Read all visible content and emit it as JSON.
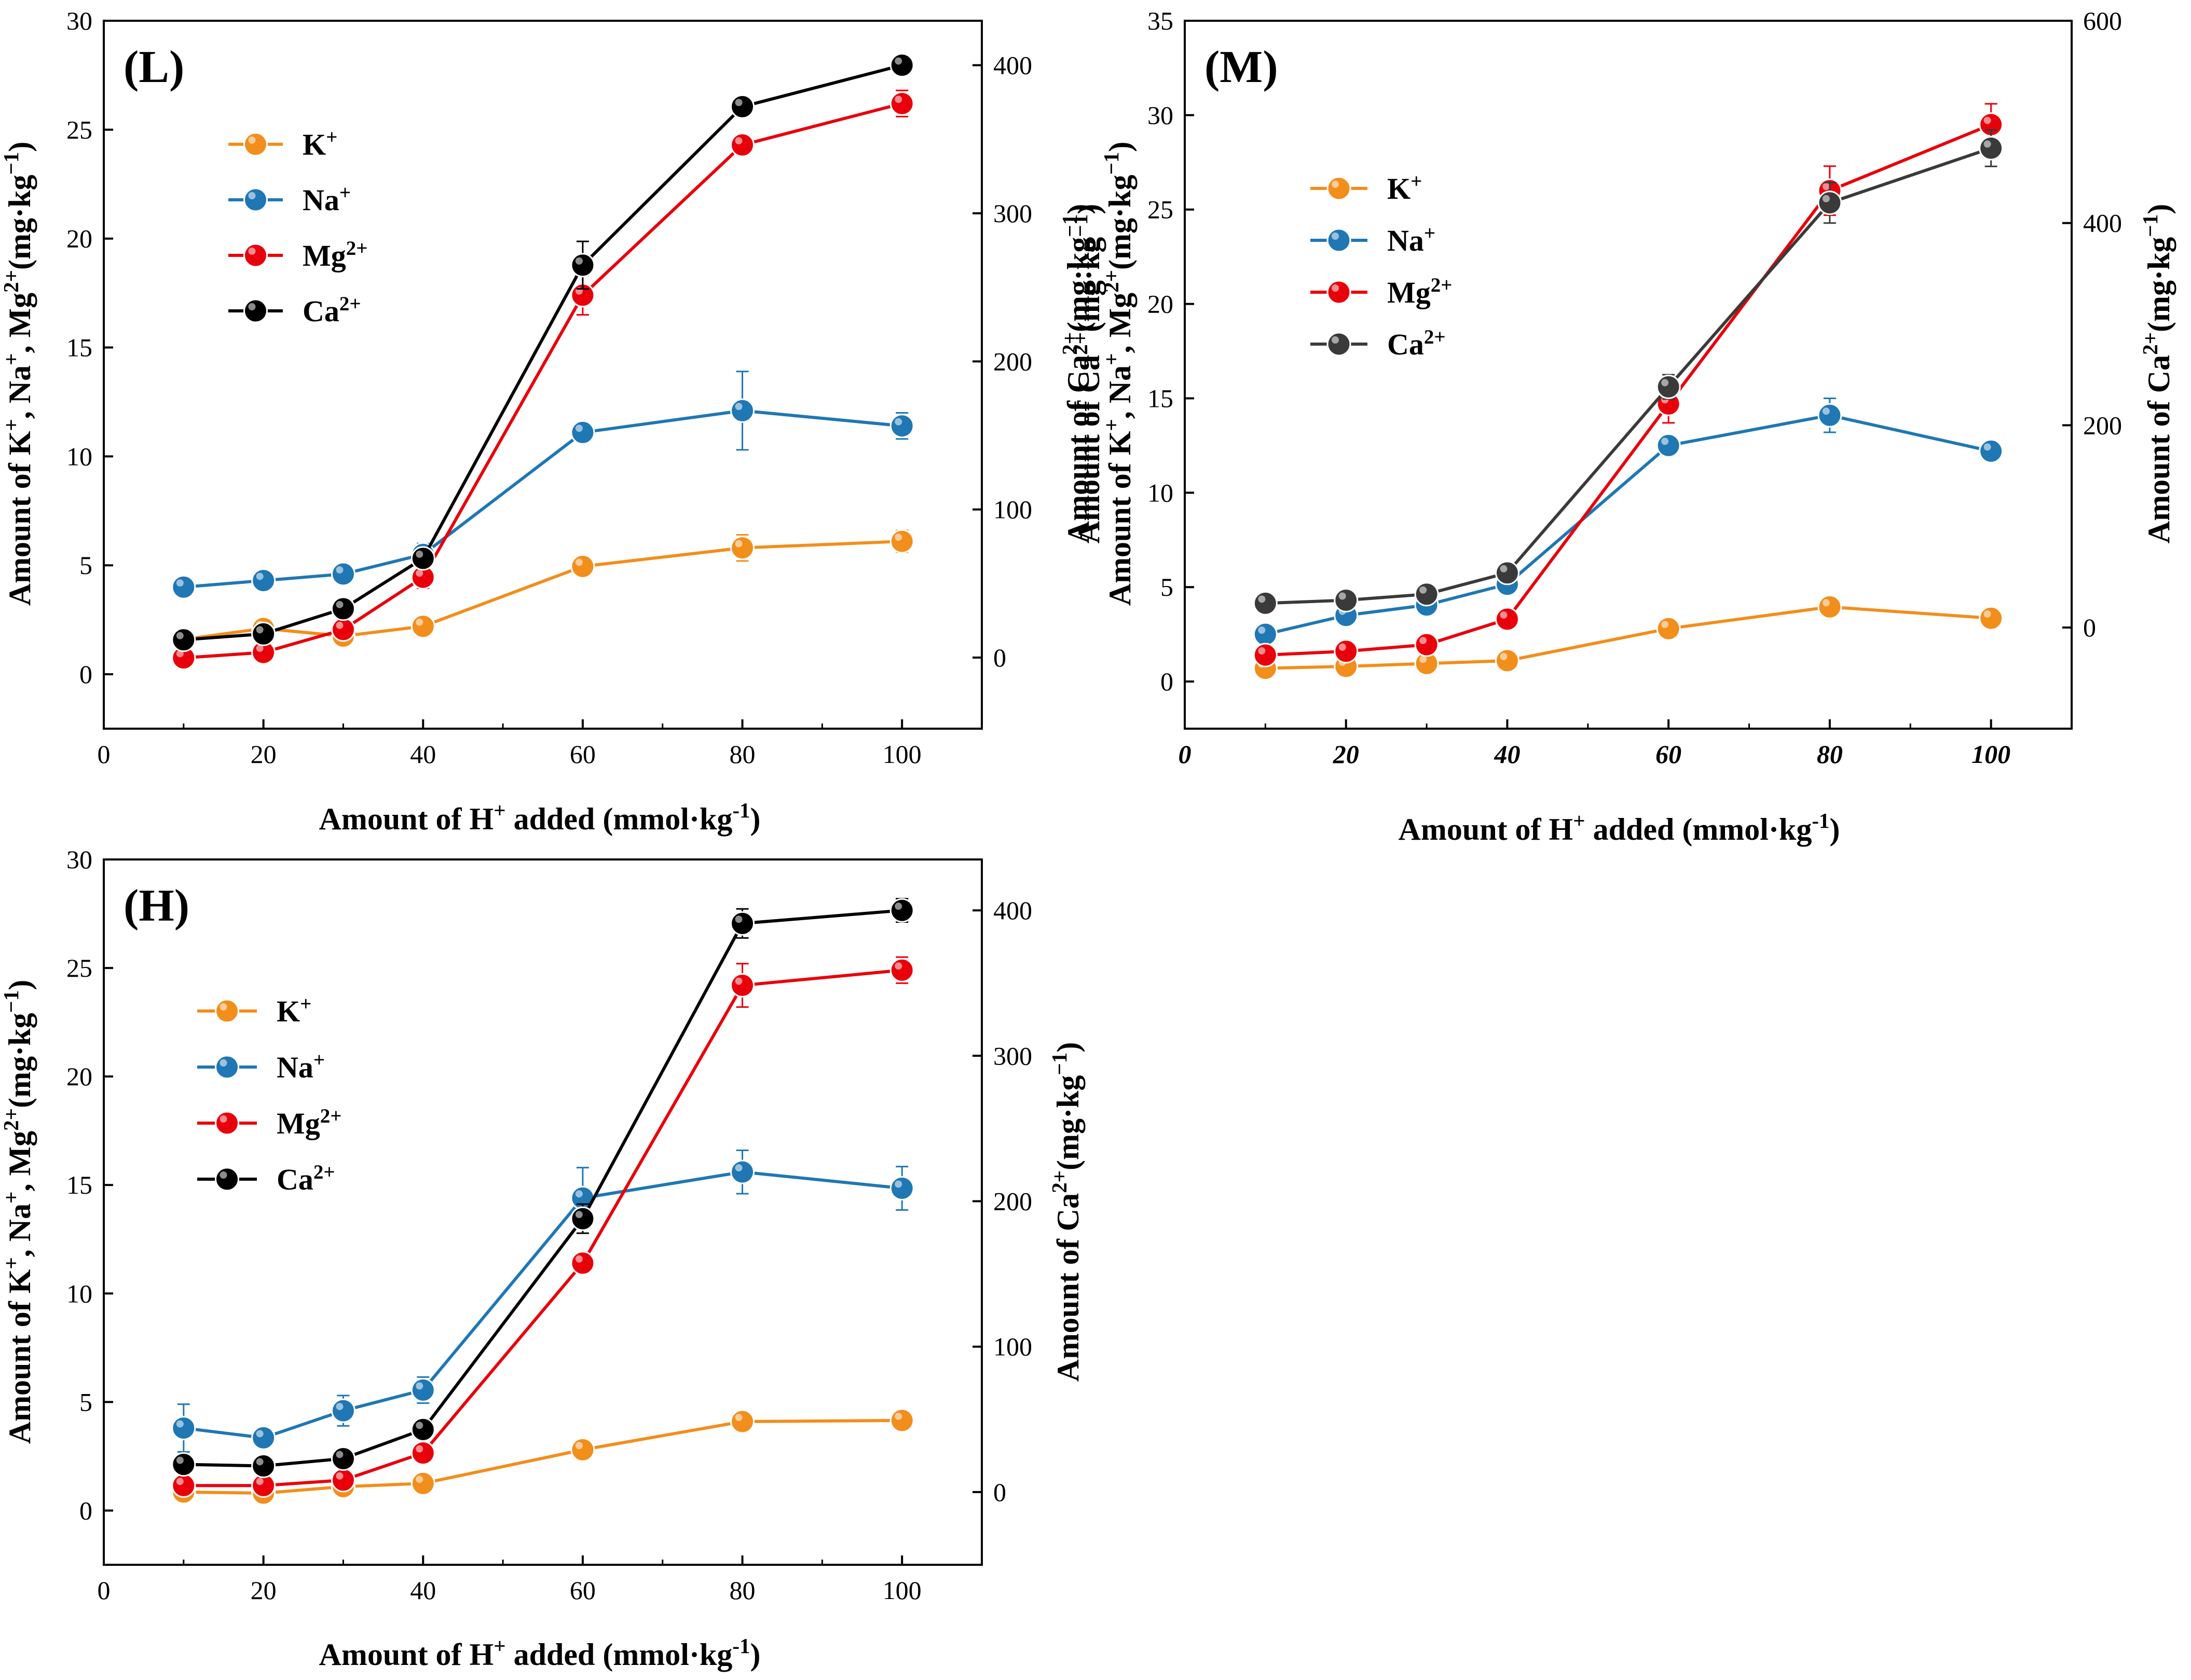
{
  "chart_data": [
    {
      "type": "line",
      "panel": "(L)",
      "title": "",
      "xlabel": "Amount of H+ added (mmol·kg-1)",
      "xlabel_parts": {
        "pre": "Amount of H",
        "sup": "+",
        "post": " added (mmol·kg",
        "sup2": "-1",
        "end": ")"
      },
      "ylabel": "Amount of K+, Na+, Mg2+(mg·kg−1)",
      "y2label": "Amount of Ca2+(mg·kg−1)",
      "xlim": [
        0,
        110
      ],
      "ylim": [
        -2.5,
        30
      ],
      "y2lim": [
        -48,
        430
      ],
      "xticks": [
        0,
        20,
        40,
        60,
        80,
        100
      ],
      "yticks": [
        0,
        5,
        10,
        15,
        20,
        25,
        30
      ],
      "y2ticks": [
        0,
        100,
        200,
        300,
        400
      ],
      "legend_position": "top-left",
      "x": [
        10,
        20,
        30,
        40,
        60,
        80,
        100
      ],
      "series": [
        {
          "name": "K+",
          "label_base": "K",
          "label_sup": "+",
          "color": "#f28e1c",
          "axis": "left",
          "values": [
            1.6,
            2.1,
            1.75,
            2.2,
            4.95,
            5.8,
            6.1
          ],
          "errors": [
            0.2,
            0.2,
            0.2,
            0.2,
            0.3,
            0.6,
            0.5
          ]
        },
        {
          "name": "Na+",
          "label_base": "Na",
          "label_sup": "+",
          "color": "#1f77b4",
          "axis": "left",
          "values": [
            4.0,
            4.3,
            4.6,
            5.5,
            11.1,
            12.1,
            11.4
          ],
          "errors": [
            0.3,
            0.2,
            0.3,
            0.5,
            0.4,
            1.8,
            0.6
          ]
        },
        {
          "name": "Mg2+",
          "label_base": "Mg",
          "label_sup": "2+",
          "color": "#e8000b",
          "axis": "left",
          "values": [
            0.75,
            1.0,
            2.05,
            4.45,
            17.4,
            24.3,
            26.2
          ],
          "errors": [
            0.2,
            0.2,
            0.2,
            0.5,
            0.9,
            0.4,
            0.6
          ]
        },
        {
          "name": "Ca2+",
          "label_base": "Ca",
          "label_sup": "2+",
          "color": "#000000",
          "axis": "right",
          "values": [
            12,
            16,
            33,
            67,
            265,
            372,
            400
          ],
          "errors": [
            3,
            3,
            3,
            5,
            16,
            4,
            5
          ]
        }
      ]
    },
    {
      "type": "line",
      "panel": "(M)",
      "title": "",
      "xlabel": "Amount of H+ added (mmol·kg-1)",
      "xlabel_parts": {
        "pre": "Amount of H",
        "sup": "+",
        "post": " added (mmol·kg",
        "sup2": "-1",
        "end": ")"
      },
      "ylabel": "Amount of K+, Na+, Mg2+(mg·kg−1)",
      "ylabel_overlap": "Amount of Ca2+(mg·kg−1)",
      "y2label": "Amount of Ca2+(mg·kg−1)",
      "xlim": [
        0,
        110
      ],
      "ylim": [
        -2.5,
        35
      ],
      "y2lim": [
        -100,
        600
      ],
      "xticks": [
        0,
        20,
        40,
        60,
        80,
        100
      ],
      "yticks": [
        0,
        5,
        10,
        15,
        20,
        25,
        30,
        35
      ],
      "y2ticks": [
        0,
        200,
        400,
        600
      ],
      "legend_position": "top-left",
      "x": [
        10,
        20,
        30,
        40,
        60,
        80,
        100
      ],
      "series": [
        {
          "name": "K+",
          "label_base": "K",
          "label_sup": "+",
          "color": "#f28e1c",
          "axis": "left",
          "values": [
            0.7,
            0.8,
            0.95,
            1.1,
            2.8,
            3.95,
            3.35
          ],
          "errors": [
            0.1,
            0.1,
            0.1,
            0.1,
            0.2,
            0.2,
            0.2
          ]
        },
        {
          "name": "Na+",
          "label_base": "Na",
          "label_sup": "+",
          "color": "#1f77b4",
          "axis": "left",
          "values": [
            2.5,
            3.5,
            4.05,
            5.15,
            12.5,
            14.1,
            12.2
          ],
          "errors": [
            0.1,
            0.2,
            0.2,
            0.2,
            0.3,
            0.9,
            0.3
          ]
        },
        {
          "name": "Mg2+",
          "label_base": "Mg",
          "label_sup": "2+",
          "color": "#e8000b",
          "axis": "left",
          "values": [
            1.4,
            1.6,
            1.95,
            3.3,
            14.7,
            26.0,
            29.5
          ],
          "errors": [
            0.1,
            0.1,
            0.1,
            0.3,
            1.0,
            1.3,
            1.1
          ]
        },
        {
          "name": "Ca2+",
          "label_base": "Ca",
          "label_sup": "2+",
          "color": "#3a3a3a",
          "axis": "right",
          "values": [
            24,
            27,
            33,
            54,
            238,
            420,
            474
          ],
          "errors": [
            3,
            3,
            3,
            4,
            12,
            20,
            18
          ]
        }
      ]
    },
    {
      "type": "line",
      "panel": "(H)",
      "title": "",
      "xlabel": "Amount of H+ added (mmol·kg-1)",
      "xlabel_parts": {
        "pre": "Amount of H",
        "sup": "+",
        "post": " added (mmol·kg",
        "sup2": "-1",
        "end": ")"
      },
      "ylabel": "Amount of K+, Na+, Mg2+(mg·kg−1)",
      "y2label": "Amount of Ca2+(mg·kg−1)",
      "xlim": [
        0,
        110
      ],
      "ylim": [
        -2.5,
        30
      ],
      "y2lim": [
        -50,
        435
      ],
      "xticks": [
        0,
        20,
        40,
        60,
        80,
        100
      ],
      "yticks": [
        0,
        5,
        10,
        15,
        20,
        25,
        30
      ],
      "y2ticks": [
        0,
        100,
        200,
        300,
        400
      ],
      "legend_position": "top-left",
      "x": [
        10,
        20,
        30,
        40,
        60,
        80,
        100
      ],
      "series": [
        {
          "name": "K+",
          "label_base": "K",
          "label_sup": "+",
          "color": "#f28e1c",
          "axis": "left",
          "values": [
            0.85,
            0.8,
            1.1,
            1.25,
            2.8,
            4.1,
            4.15
          ],
          "errors": [
            0.1,
            0.1,
            0.1,
            0.1,
            0.2,
            0.2,
            0.2
          ]
        },
        {
          "name": "Na+",
          "label_base": "Na",
          "label_sup": "+",
          "color": "#1f77b4",
          "axis": "left",
          "values": [
            3.8,
            3.35,
            4.6,
            5.55,
            14.4,
            15.6,
            14.85
          ],
          "errors": [
            1.1,
            0.2,
            0.7,
            0.6,
            1.4,
            1.0,
            1.0
          ]
        },
        {
          "name": "Mg2+",
          "label_base": "Mg",
          "label_sup": "2+",
          "color": "#e8000b",
          "axis": "left",
          "values": [
            1.15,
            1.15,
            1.4,
            2.65,
            11.4,
            24.2,
            24.9
          ],
          "errors": [
            0.1,
            0.1,
            0.2,
            0.2,
            0.3,
            1.0,
            0.6
          ]
        },
        {
          "name": "Ca2+",
          "label_base": "Ca",
          "label_sup": "2+",
          "color": "#000000",
          "axis": "right",
          "values": [
            19,
            18,
            23,
            43,
            188,
            391,
            400
          ],
          "errors": [
            3,
            3,
            3,
            4,
            10,
            10,
            8
          ]
        }
      ]
    }
  ]
}
